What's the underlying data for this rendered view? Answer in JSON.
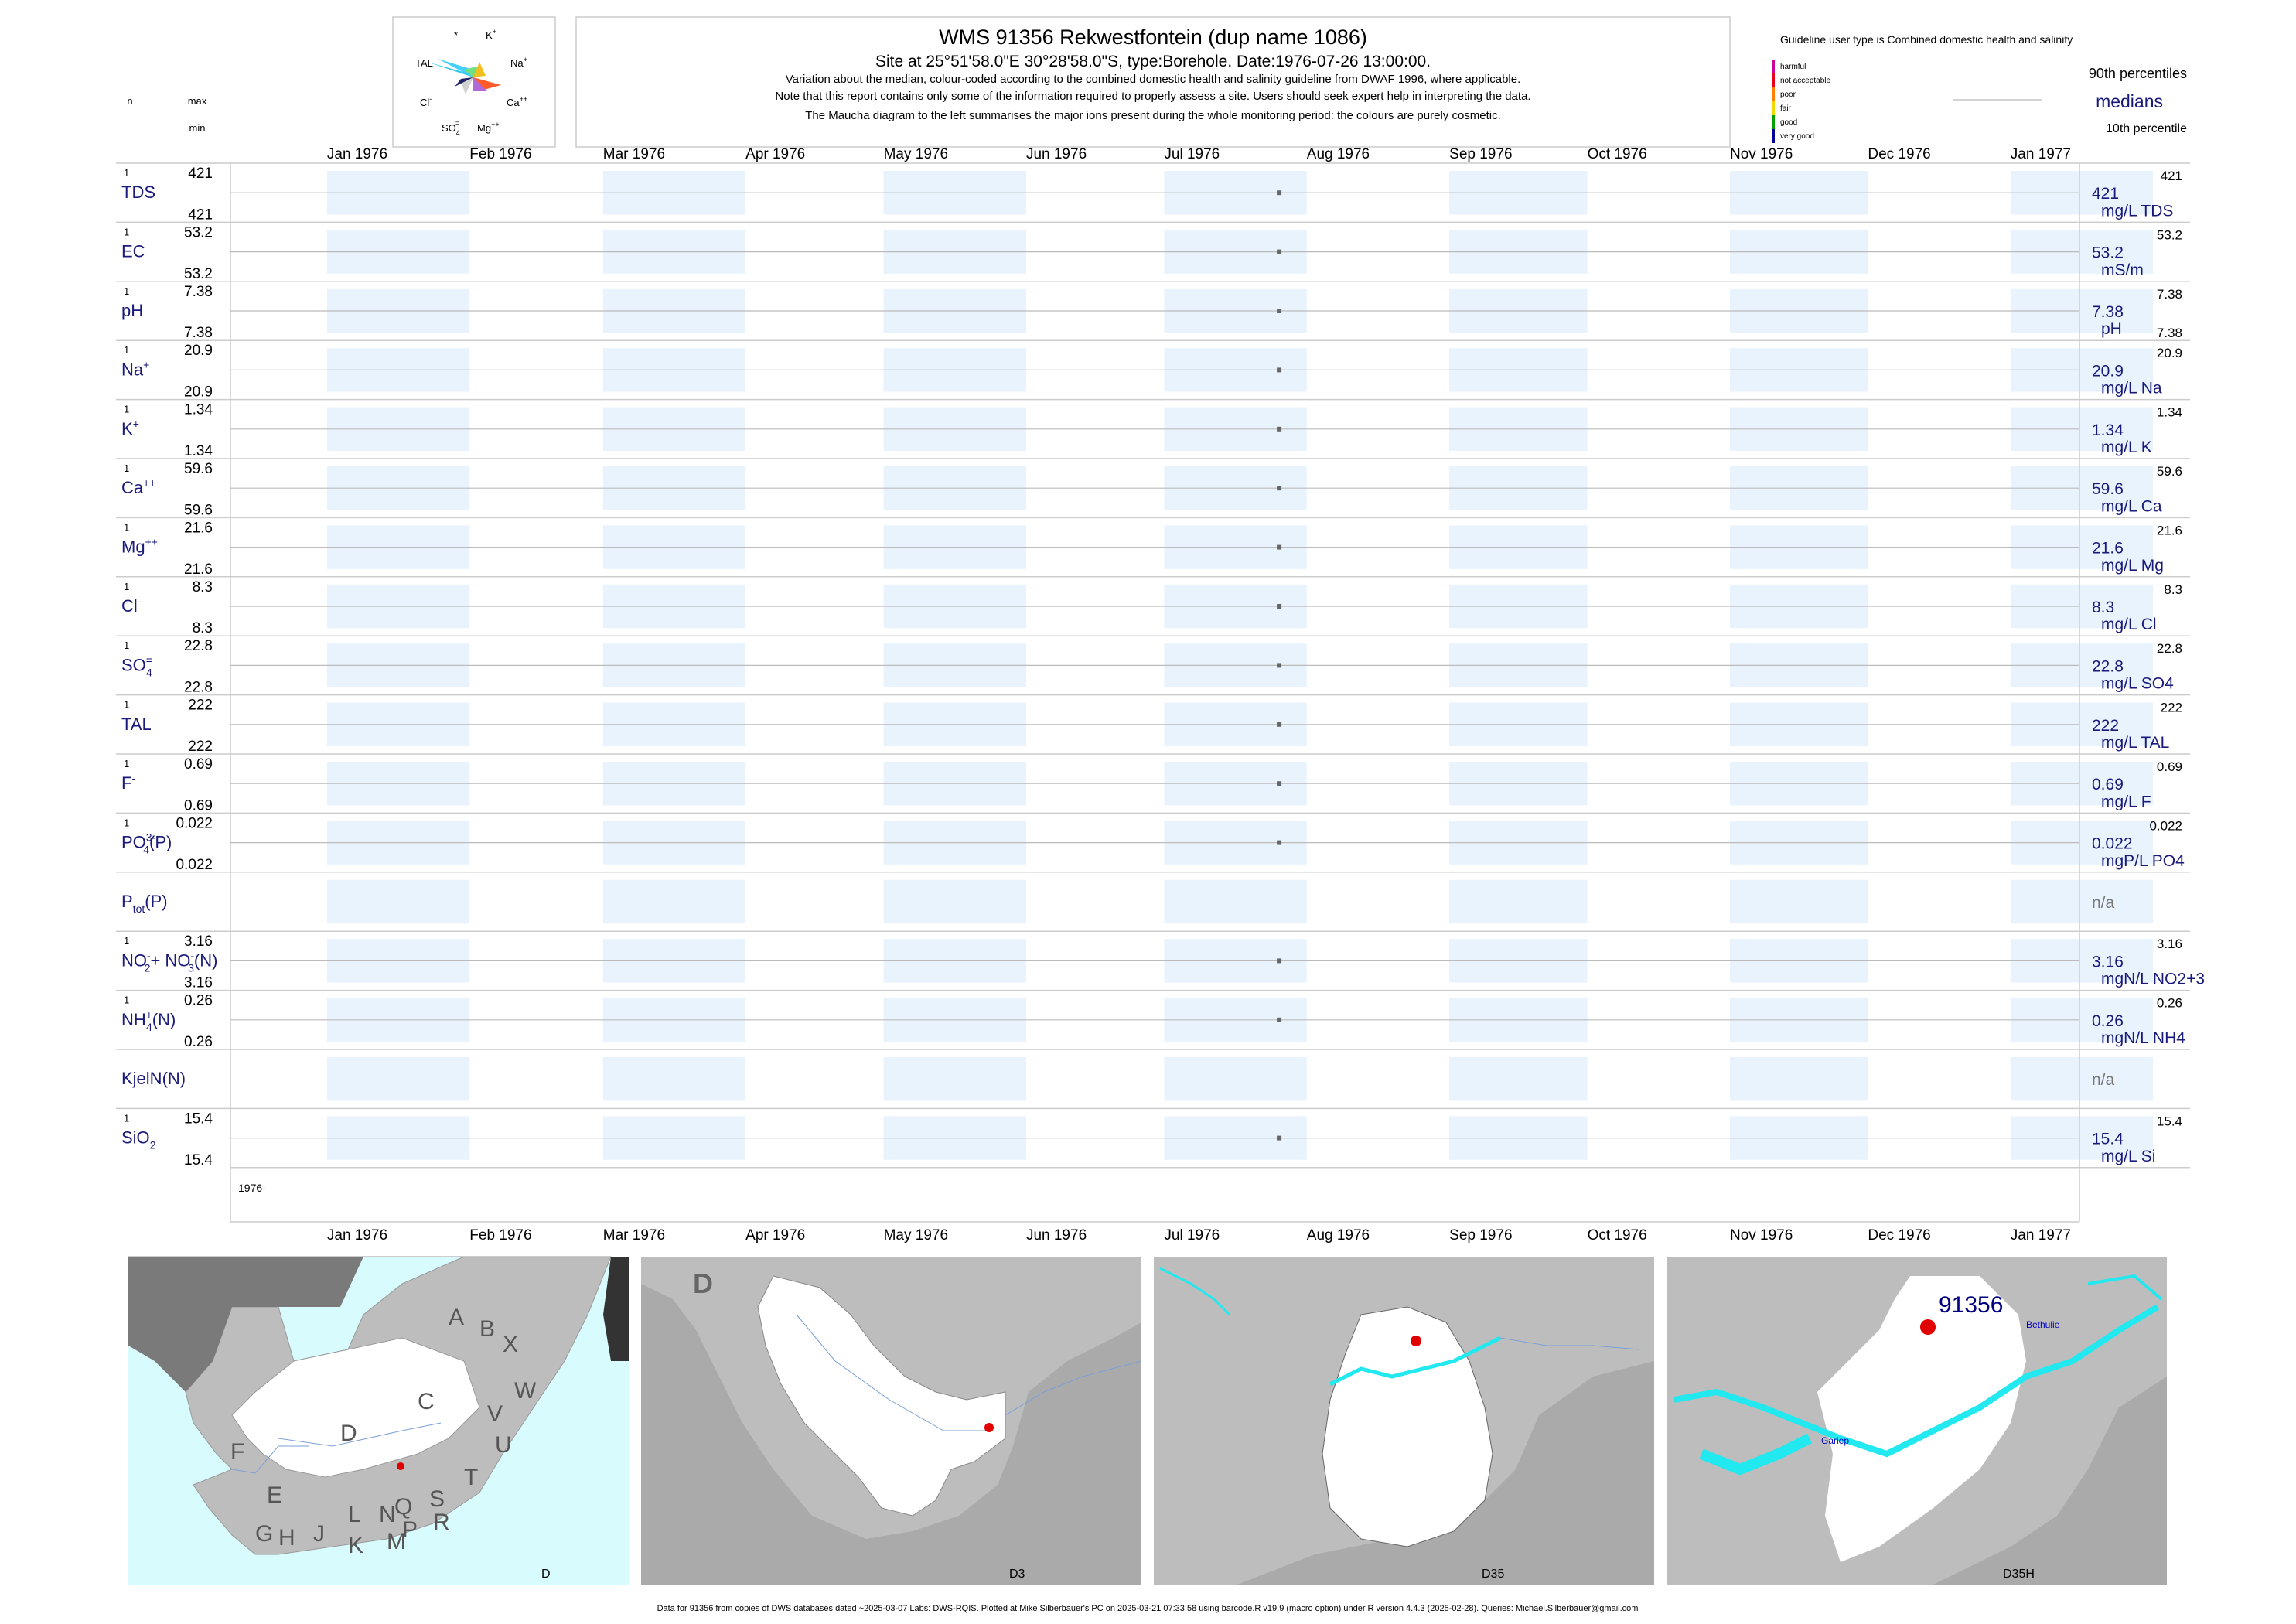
{
  "header": {
    "title": "WMS 91356  Rekwestfontein (dup name 1086)",
    "subtitle": "Site at 25°51'58.0\"E 30°28'58.0\"S, type:Borehole. Date:1976-07-26 13:00:00.",
    "note1": "Variation about the median,  colour-coded according to the combined domestic health and salinity guideline from DWAF 1996, where applicable.",
    "note2": "Note that this report contains only some of the information required to properly assess a site. Users should seek expert help in interpreting the data.",
    "note3": "The Maucha diagram to the left summarises the major ions present during the whole monitoring period: the colours are purely cosmetic."
  },
  "left_header": {
    "n": "n",
    "max": "max",
    "min": "min"
  },
  "maucha": {
    "labels": [
      {
        "base": "*",
        "sup": ""
      },
      {
        "base": "K",
        "sup": "+"
      },
      {
        "base": "TAL",
        "sup": ""
      },
      {
        "base": "Na",
        "sup": "+"
      },
      {
        "base": "Cl",
        "sup": "-"
      },
      {
        "base": "Ca",
        "sup": "++"
      },
      {
        "base": "SO",
        "sub": "4",
        "sup": "="
      },
      {
        "base": "Mg",
        "sup": "++"
      }
    ]
  },
  "legend": {
    "guideline_text": "Guideline user type is Combined domestic health and salinity",
    "categories": [
      {
        "label": "harmful",
        "color": "#cc0099"
      },
      {
        "label": "not acceptable",
        "color": "#e8001c"
      },
      {
        "label": "poor",
        "color": "#ff8000"
      },
      {
        "label": "fair",
        "color": "#f0d800"
      },
      {
        "label": "good",
        "color": "#00a000"
      },
      {
        "label": "very good",
        "color": "#000099"
      }
    ],
    "p90": "90th percentiles",
    "medians": "medians",
    "p10": "10th percentile"
  },
  "colors": {
    "band": "#e8f3fd",
    "label": "#1a1a7a",
    "median_line": "#bbbbbb",
    "point": "#666666",
    "na": "#777777"
  },
  "chart_data": {
    "type": "scatter",
    "x_axis_labels": [
      "Jan 1976",
      "Feb 1976",
      "Mar 1976",
      "Apr 1976",
      "May 1976",
      "Jun 1976",
      "Jul 1976",
      "Aug 1976",
      "Sep 1976",
      "Oct 1976",
      "Nov 1976",
      "Dec 1976",
      "Jan 1977"
    ],
    "xlim": [
      "1975-12-11",
      "1977-01-16"
    ],
    "x_year_label": "1976-",
    "sample_date": "1976-07-26",
    "variables": [
      {
        "name": "TDS",
        "n": "1",
        "max": "421",
        "min": "421",
        "median": "421",
        "unit": "mg/L TDS",
        "p90": "421",
        "p10": ""
      },
      {
        "name": "EC",
        "n": "1",
        "max": "53.2",
        "min": "53.2",
        "median": "53.2",
        "unit": "mS/m",
        "p90": "53.2",
        "p10": ""
      },
      {
        "name": "pH",
        "n": "1",
        "max": "7.38",
        "min": "7.38",
        "median": "7.38",
        "unit": "pH",
        "p90": "7.38",
        "p10": "7.38"
      },
      {
        "name": "Na",
        "sup": "+",
        "n": "1",
        "max": "20.9",
        "min": "20.9",
        "median": "20.9",
        "unit": "mg/L Na",
        "p90": "20.9",
        "p10": ""
      },
      {
        "name": "K",
        "sup": "+",
        "n": "1",
        "max": "1.34",
        "min": "1.34",
        "median": "1.34",
        "unit": "mg/L K",
        "p90": "1.34",
        "p10": ""
      },
      {
        "name": "Ca",
        "sup": "++",
        "n": "1",
        "max": "59.6",
        "min": "59.6",
        "median": "59.6",
        "unit": "mg/L Ca",
        "p90": "59.6",
        "p10": ""
      },
      {
        "name": "Mg",
        "sup": "++",
        "n": "1",
        "max": "21.6",
        "min": "21.6",
        "median": "21.6",
        "unit": "mg/L Mg",
        "p90": "21.6",
        "p10": ""
      },
      {
        "name": "Cl",
        "sup": "-",
        "n": "1",
        "max": "8.3",
        "min": "8.3",
        "median": "8.3",
        "unit": "mg/L Cl",
        "p90": "8.3",
        "p10": ""
      },
      {
        "name": "SO",
        "sub": "4",
        "sup": "=",
        "n": "1",
        "max": "22.8",
        "min": "22.8",
        "median": "22.8",
        "unit": "mg/L SO4",
        "p90": "22.8",
        "p10": ""
      },
      {
        "name": "TAL",
        "n": "1",
        "max": "222",
        "min": "222",
        "median": "222",
        "unit": "mg/L TAL",
        "p90": "222",
        "p10": ""
      },
      {
        "name": "F",
        "sup": "-",
        "n": "1",
        "max": "0.69",
        "min": "0.69",
        "median": "0.69",
        "unit": "mg/L F",
        "p90": "0.69",
        "p10": ""
      },
      {
        "name": "PO",
        "sub": "4",
        "sup": "3-",
        "suffix": "(P)",
        "n": "1",
        "max": "0.022",
        "min": "0.022",
        "median": "0.022",
        "unit": "mgP/L PO4",
        "p90": "0.022",
        "p10": ""
      },
      {
        "name": "P",
        "sub": "tot",
        "suffix": "(P)",
        "n": "",
        "max": "",
        "min": "",
        "median": "n/a",
        "unit": "",
        "p90": "",
        "p10": ""
      },
      {
        "name": "NO",
        "sub": "2",
        "sup": "-",
        "suffix": "+ NO",
        "sub2": "3",
        "sup2": "-",
        "suffix2": "(N)",
        "n": "1",
        "max": "3.16",
        "min": "3.16",
        "median": "3.16",
        "unit": "mgN/L NO2+3",
        "p90": "3.16",
        "p10": ""
      },
      {
        "name": "NH",
        "sub": "4",
        "sup": "+",
        "suffix": "(N)",
        "n": "1",
        "max": "0.26",
        "min": "0.26",
        "median": "0.26",
        "unit": "mgN/L NH4",
        "p90": "0.26",
        "p10": ""
      },
      {
        "name": "KjelN(N)",
        "n": "",
        "max": "",
        "min": "",
        "median": "n/a",
        "unit": "",
        "p90": "",
        "p10": ""
      },
      {
        "name": "SiO",
        "sub": "2",
        "n": "1",
        "max": "15.4",
        "min": "15.4",
        "median": "15.4",
        "unit": "mg/L Si",
        "p90": "15.4",
        "p10": ""
      }
    ]
  },
  "maps": [
    {
      "label": "D",
      "letters": [
        "A",
        "B",
        "X",
        "W",
        "C",
        "V",
        "U",
        "T",
        "D",
        "F",
        "E",
        "G",
        "H",
        "J",
        "K",
        "L",
        "M",
        "N",
        "P",
        "Q",
        "R",
        "S"
      ]
    },
    {
      "label": "D3",
      "corner": "D"
    },
    {
      "label": "D35"
    },
    {
      "label": "D35H",
      "site": "91356",
      "places": [
        "Bethulie",
        "Gariep"
      ]
    }
  ],
  "footer": "Data for 91356 from copies of DWS databases dated ~2025-03-07 Labs: DWS-RQIS. Plotted at Mike Silberbauer's PC on 2025-03-21 07:33:58 using barcode.R v19.9 (macro option) under R version 4.4.3 (2025-02-28). Queries: Michael.Silberbauer@gmail.com"
}
